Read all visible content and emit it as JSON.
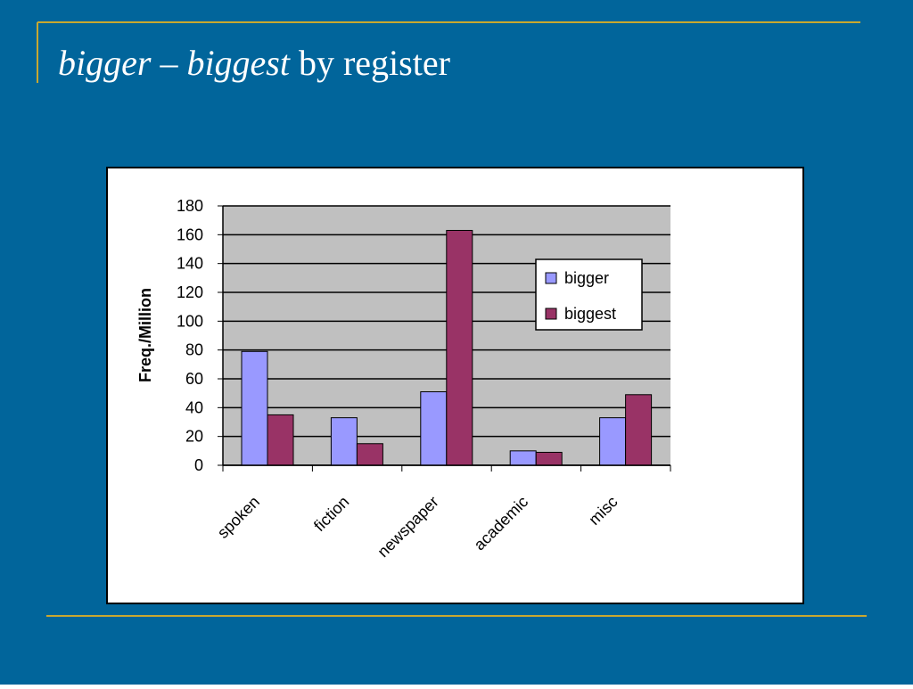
{
  "slide_title": [
    {
      "text": "bigger",
      "italic": true
    },
    {
      "text": "–",
      "italic": false
    },
    {
      "text": "biggest",
      "italic": true
    },
    {
      "text": "by register",
      "italic": false
    }
  ],
  "chart_data": {
    "type": "bar",
    "y_label": "Freq./Million",
    "categories": [
      "spoken",
      "fiction",
      "newspaper",
      "academic",
      "misc"
    ],
    "series": [
      {
        "name": "bigger",
        "color": "#9999ff",
        "values": [
          79,
          33,
          51,
          10,
          33
        ]
      },
      {
        "name": "biggest",
        "color": "#993366",
        "values": [
          35,
          15,
          163,
          9,
          49
        ]
      }
    ],
    "ylim": [
      0,
      180
    ],
    "yticks": [
      0,
      20,
      40,
      60,
      80,
      100,
      120,
      140,
      160,
      180
    ],
    "grid": true,
    "legend": "right"
  }
}
